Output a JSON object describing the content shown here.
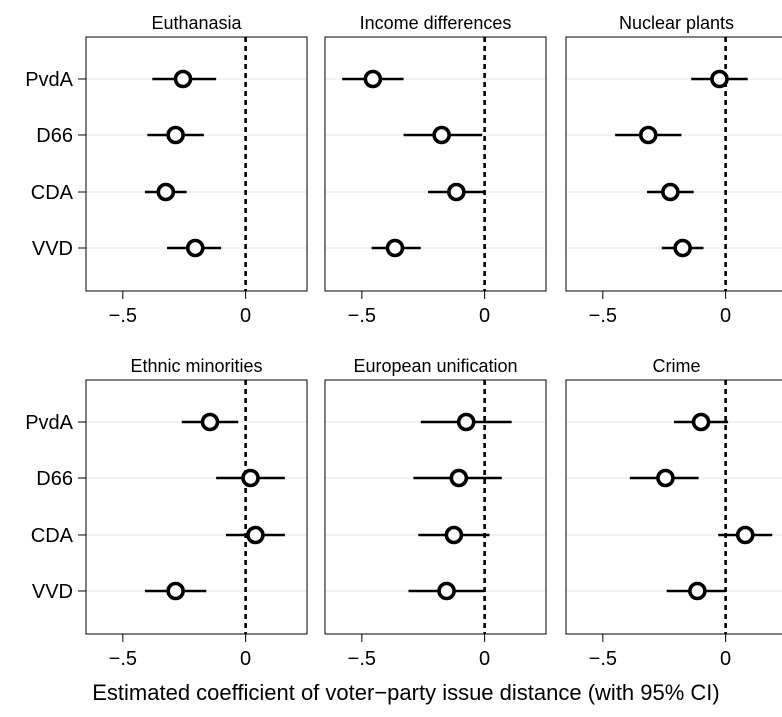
{
  "chart_data": {
    "type": "scatter",
    "xlabel": "Estimated coefficient of voter−party issue distance (with 95% CI)",
    "categories": [
      "PvdA",
      "D66",
      "CDA",
      "VVD"
    ],
    "xlim": [
      -0.65,
      0.25
    ],
    "xticks": [
      -0.5,
      0
    ],
    "xtick_labels": [
      "−.5",
      "0"
    ],
    "reference_line": 0,
    "panels": [
      {
        "title": "Euthanasia",
        "points": [
          {
            "party": "PvdA",
            "estimate": -0.255,
            "ci": [
              -0.38,
              -0.12
            ]
          },
          {
            "party": "D66",
            "estimate": -0.285,
            "ci": [
              -0.4,
              -0.17
            ]
          },
          {
            "party": "CDA",
            "estimate": -0.325,
            "ci": [
              -0.41,
              -0.24
            ]
          },
          {
            "party": "VVD",
            "estimate": -0.205,
            "ci": [
              -0.32,
              -0.1
            ]
          }
        ]
      },
      {
        "title": "Income differences",
        "points": [
          {
            "party": "PvdA",
            "estimate": -0.455,
            "ci": [
              -0.58,
              -0.33
            ]
          },
          {
            "party": "D66",
            "estimate": -0.175,
            "ci": [
              -0.33,
              -0.01
            ]
          },
          {
            "party": "CDA",
            "estimate": -0.115,
            "ci": [
              -0.23,
              0.0
            ]
          },
          {
            "party": "VVD",
            "estimate": -0.365,
            "ci": [
              -0.46,
              -0.26
            ]
          }
        ]
      },
      {
        "title": "Nuclear plants",
        "points": [
          {
            "party": "PvdA",
            "estimate": -0.025,
            "ci": [
              -0.14,
              0.09
            ]
          },
          {
            "party": "D66",
            "estimate": -0.315,
            "ci": [
              -0.45,
              -0.18
            ]
          },
          {
            "party": "CDA",
            "estimate": -0.225,
            "ci": [
              -0.32,
              -0.13
            ]
          },
          {
            "party": "VVD",
            "estimate": -0.175,
            "ci": [
              -0.26,
              -0.09
            ]
          }
        ]
      },
      {
        "title": "Ethnic minorities",
        "points": [
          {
            "party": "PvdA",
            "estimate": -0.145,
            "ci": [
              -0.26,
              -0.03
            ]
          },
          {
            "party": "D66",
            "estimate": 0.02,
            "ci": [
              -0.12,
              0.16
            ]
          },
          {
            "party": "CDA",
            "estimate": 0.04,
            "ci": [
              -0.08,
              0.16
            ]
          },
          {
            "party": "VVD",
            "estimate": -0.285,
            "ci": [
              -0.41,
              -0.16
            ]
          }
        ]
      },
      {
        "title": "European unification",
        "points": [
          {
            "party": "PvdA",
            "estimate": -0.075,
            "ci": [
              -0.26,
              0.11
            ]
          },
          {
            "party": "D66",
            "estimate": -0.105,
            "ci": [
              -0.29,
              0.07
            ]
          },
          {
            "party": "CDA",
            "estimate": -0.125,
            "ci": [
              -0.27,
              0.02
            ]
          },
          {
            "party": "VVD",
            "estimate": -0.155,
            "ci": [
              -0.31,
              0.0
            ]
          }
        ]
      },
      {
        "title": "Crime",
        "points": [
          {
            "party": "PvdA",
            "estimate": -0.1,
            "ci": [
              -0.21,
              0.01
            ]
          },
          {
            "party": "D66",
            "estimate": -0.245,
            "ci": [
              -0.39,
              -0.11
            ]
          },
          {
            "party": "CDA",
            "estimate": 0.08,
            "ci": [
              -0.03,
              0.19
            ]
          },
          {
            "party": "VVD",
            "estimate": -0.115,
            "ci": [
              -0.24,
              0.0
            ]
          }
        ]
      }
    ],
    "grid": true,
    "legend": "none"
  }
}
